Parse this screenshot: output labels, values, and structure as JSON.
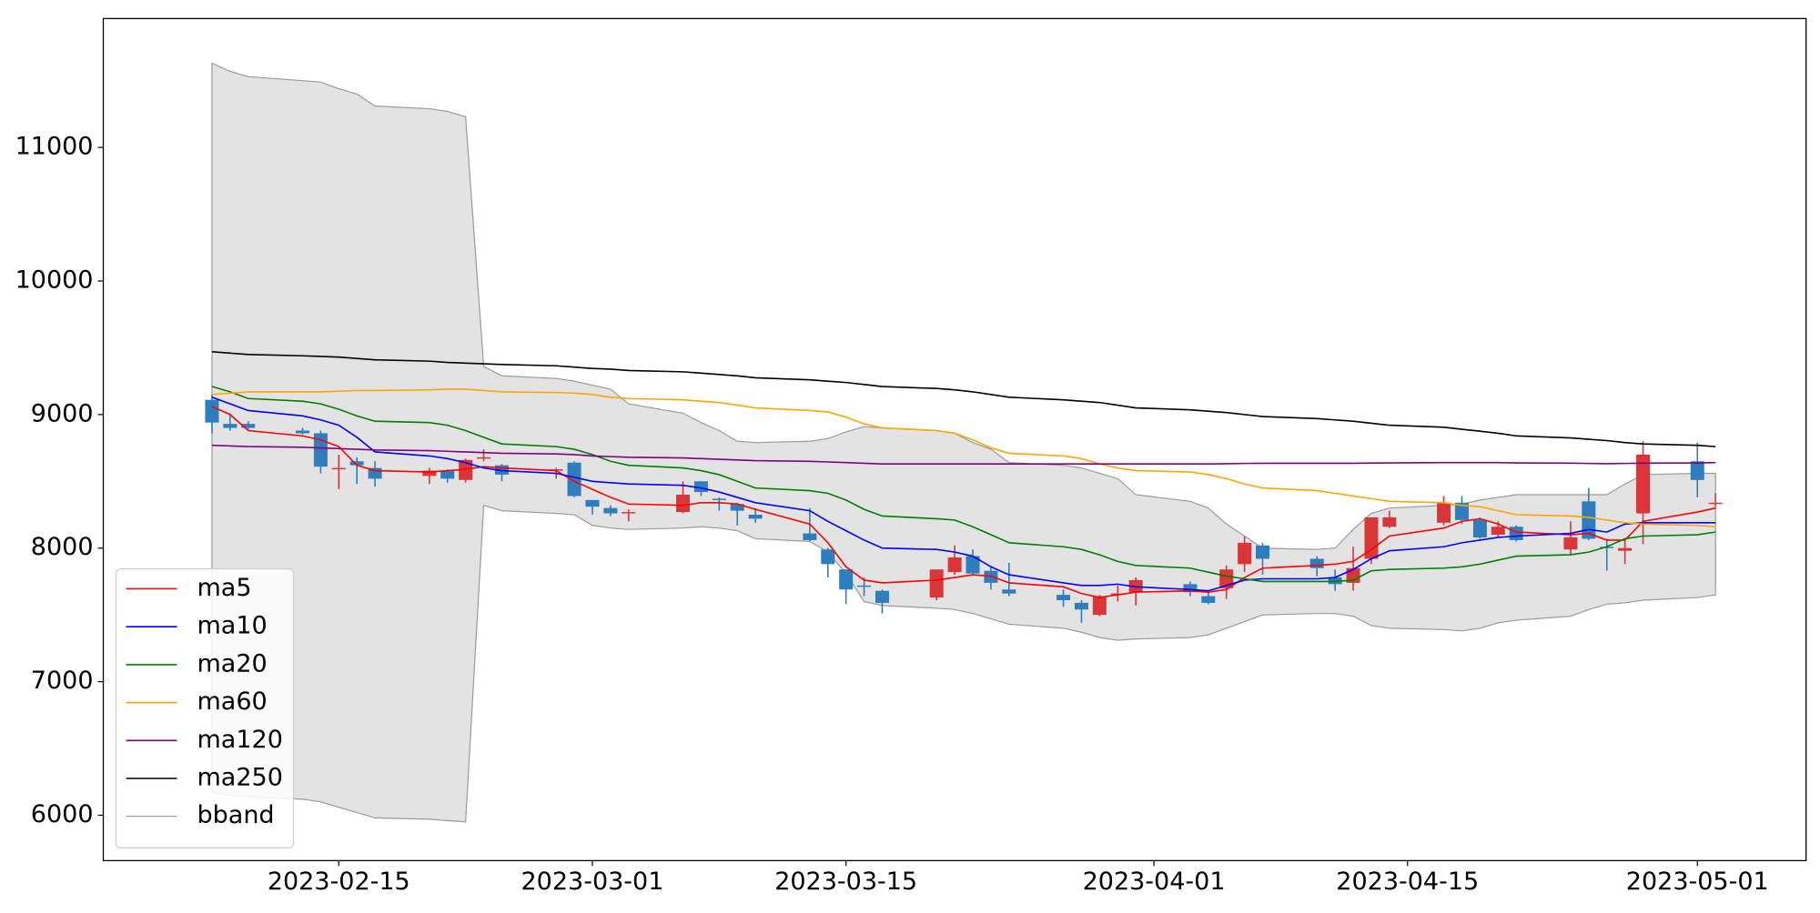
{
  "chart_data": {
    "type": "candlestick",
    "x": [
      "2023-02-08",
      "2023-02-09",
      "2023-02-10",
      "2023-02-13",
      "2023-02-14",
      "2023-02-15",
      "2023-02-16",
      "2023-02-17",
      "2023-02-20",
      "2023-02-21",
      "2023-02-22",
      "2023-02-23",
      "2023-02-24",
      "2023-02-27",
      "2023-02-28",
      "2023-03-01",
      "2023-03-02",
      "2023-03-03",
      "2023-03-06",
      "2023-03-07",
      "2023-03-08",
      "2023-03-09",
      "2023-03-10",
      "2023-03-13",
      "2023-03-14",
      "2023-03-15",
      "2023-03-16",
      "2023-03-17",
      "2023-03-20",
      "2023-03-21",
      "2023-03-22",
      "2023-03-23",
      "2023-03-24",
      "2023-03-27",
      "2023-03-28",
      "2023-03-29",
      "2023-03-30",
      "2023-03-31",
      "2023-04-03",
      "2023-04-04",
      "2023-04-05",
      "2023-04-06",
      "2023-04-07",
      "2023-04-10",
      "2023-04-11",
      "2023-04-12",
      "2023-04-13",
      "2023-04-14",
      "2023-04-17",
      "2023-04-18",
      "2023-04-19",
      "2023-04-20",
      "2023-04-21",
      "2023-04-24",
      "2023-04-25",
      "2023-04-26",
      "2023-04-27",
      "2023-04-28",
      "2023-05-01",
      "2023-05-02"
    ],
    "xlim": [
      "2023-02-02",
      "2023-05-07"
    ],
    "xticks": [
      "2023-02-15",
      "2023-03-01",
      "2023-03-15",
      "2023-04-01",
      "2023-04-15",
      "2023-05-01"
    ],
    "ylim": [
      5660,
      11965
    ],
    "yticks": [
      6000,
      7000,
      8000,
      9000,
      10000,
      11000
    ],
    "up_color": "#d9363a",
    "down_color": "#2f7dbd",
    "open": [
      9110,
      8930,
      8930,
      8880,
      8860,
      8590,
      8650,
      8600,
      8540,
      8580,
      8510,
      8670,
      8620,
      8580,
      8640,
      8360,
      8300,
      8260,
      8270,
      8500,
      8370,
      8330,
      8250,
      8110,
      7990,
      7840,
      7720,
      7680,
      7630,
      7820,
      7940,
      7830,
      7690,
      7650,
      7590,
      7500,
      7650,
      7670,
      7730,
      7640,
      7700,
      7880,
      8020,
      7920,
      7780,
      7740,
      7920,
      8160,
      8190,
      8340,
      8210,
      8100,
      8160,
      7990,
      8350,
      8010,
      7980,
      8260,
      8650,
      8330
    ],
    "high": [
      9150,
      9000,
      8950,
      8900,
      8880,
      8700,
      8680,
      8650,
      8600,
      8590,
      8670,
      8740,
      8630,
      8600,
      8650,
      8360,
      8320,
      8290,
      8500,
      8500,
      8380,
      8340,
      8300,
      8300,
      8000,
      7840,
      7780,
      7690,
      7840,
      8020,
      7990,
      7860,
      7890,
      7690,
      7610,
      7650,
      7720,
      7780,
      7750,
      7670,
      7870,
      8090,
      8040,
      7940,
      7840,
      8010,
      8230,
      8280,
      8390,
      8390,
      8230,
      8200,
      8170,
      8200,
      8450,
      8070,
      8060,
      8800,
      8790,
      8410
    ],
    "low": [
      8860,
      8880,
      8890,
      8850,
      8560,
      8440,
      8480,
      8460,
      8480,
      8490,
      8490,
      8650,
      8500,
      8520,
      8380,
      8250,
      8240,
      8200,
      8260,
      8390,
      8280,
      8170,
      8190,
      8050,
      7780,
      7580,
      7640,
      7510,
      7610,
      7800,
      7800,
      7690,
      7640,
      7560,
      7440,
      7490,
      7600,
      7570,
      7640,
      7580,
      7620,
      7820,
      7800,
      7790,
      7680,
      7680,
      7880,
      8150,
      8170,
      8180,
      8070,
      8080,
      8050,
      7950,
      8060,
      7830,
      7880,
      8030,
      8380,
      8310
    ],
    "close": [
      8940,
      8900,
      8900,
      8860,
      8610,
      8600,
      8620,
      8520,
      8580,
      8520,
      8660,
      8680,
      8550,
      8590,
      8390,
      8310,
      8260,
      8270,
      8400,
      8420,
      8360,
      8280,
      8220,
      8060,
      7880,
      7690,
      7710,
      7590,
      7840,
      7930,
      7810,
      7740,
      7660,
      7610,
      7540,
      7640,
      7660,
      7760,
      7670,
      7590,
      7840,
      8040,
      7920,
      7850,
      7730,
      7850,
      8230,
      8230,
      8340,
      8210,
      8080,
      8160,
      8060,
      8080,
      8070,
      8000,
      8000,
      8700,
      8510,
      8340
    ],
    "series": [
      {
        "name": "ma5",
        "color": "#ff0000",
        "values": [
          9060,
          9000,
          8880,
          8840,
          8810,
          8760,
          8620,
          8580,
          8570,
          8580,
          8590,
          8610,
          8600,
          8580,
          8500,
          8440,
          8380,
          8330,
          8320,
          8340,
          8340,
          8330,
          8290,
          8180,
          8040,
          7860,
          7760,
          7740,
          7760,
          7780,
          7800,
          7790,
          7740,
          7710,
          7660,
          7630,
          7650,
          7670,
          7680,
          7670,
          7690,
          7780,
          7850,
          7870,
          7880,
          7900,
          7990,
          8090,
          8150,
          8200,
          8220,
          8180,
          8120,
          8100,
          8110,
          8060,
          8060,
          8200,
          8270,
          8300
        ]
      },
      {
        "name": "ma10",
        "color": "#0000ff",
        "values": [
          9130,
          9080,
          9030,
          8990,
          8960,
          8920,
          8830,
          8720,
          8690,
          8670,
          8640,
          8600,
          8580,
          8560,
          8530,
          8500,
          8490,
          8480,
          8470,
          8450,
          8420,
          8380,
          8340,
          8280,
          8200,
          8130,
          8060,
          8000,
          7990,
          7970,
          7940,
          7860,
          7800,
          7740,
          7720,
          7720,
          7730,
          7710,
          7690,
          7680,
          7720,
          7760,
          7770,
          7770,
          7780,
          7840,
          7920,
          7980,
          8010,
          8040,
          8060,
          8080,
          8090,
          8110,
          8140,
          8120,
          8180,
          8190,
          8190,
          8190
        ]
      },
      {
        "name": "ma20",
        "color": "#008000",
        "values": [
          9210,
          9170,
          9120,
          9100,
          9080,
          9040,
          8990,
          8950,
          8940,
          8920,
          8880,
          8830,
          8780,
          8760,
          8740,
          8700,
          8650,
          8620,
          8600,
          8580,
          8550,
          8500,
          8450,
          8430,
          8410,
          8360,
          8290,
          8240,
          8220,
          8210,
          8160,
          8100,
          8040,
          8010,
          7990,
          7950,
          7900,
          7870,
          7850,
          7820,
          7790,
          7770,
          7750,
          7750,
          7750,
          7760,
          7830,
          7840,
          7850,
          7860,
          7880,
          7910,
          7940,
          7950,
          7970,
          8010,
          8070,
          8090,
          8100,
          8120
        ]
      },
      {
        "name": "ma60",
        "color": "#ffa500",
        "values": [
          9150,
          9160,
          9170,
          9170,
          9170,
          9175,
          9180,
          9180,
          9185,
          9190,
          9190,
          9180,
          9170,
          9165,
          9160,
          9150,
          9130,
          9120,
          9110,
          9100,
          9090,
          9070,
          9050,
          9030,
          9020,
          8980,
          8930,
          8900,
          8880,
          8860,
          8810,
          8750,
          8710,
          8690,
          8670,
          8630,
          8600,
          8580,
          8570,
          8550,
          8520,
          8480,
          8450,
          8430,
          8410,
          8390,
          8370,
          8350,
          8340,
          8320,
          8310,
          8280,
          8250,
          8240,
          8230,
          8210,
          8190,
          8180,
          8170,
          8160
        ]
      },
      {
        "name": "ma120",
        "color": "#800080",
        "values": [
          8770,
          8765,
          8760,
          8755,
          8750,
          8745,
          8740,
          8735,
          8730,
          8725,
          8720,
          8715,
          8710,
          8705,
          8700,
          8690,
          8685,
          8680,
          8675,
          8670,
          8665,
          8660,
          8655,
          8650,
          8645,
          8640,
          8635,
          8630,
          8630,
          8630,
          8630,
          8630,
          8630,
          8630,
          8630,
          8630,
          8630,
          8630,
          8630,
          8630,
          8632,
          8634,
          8635,
          8635,
          8635,
          8635,
          8637,
          8638,
          8640,
          8640,
          8640,
          8640,
          8638,
          8636,
          8634,
          8632,
          8634,
          8636,
          8638,
          8640
        ]
      },
      {
        "name": "ma250",
        "color": "#000000",
        "values": [
          9470,
          9460,
          9450,
          9440,
          9435,
          9430,
          9420,
          9410,
          9400,
          9390,
          9385,
          9380,
          9375,
          9365,
          9355,
          9345,
          9340,
          9330,
          9320,
          9310,
          9300,
          9290,
          9275,
          9260,
          9250,
          9240,
          9225,
          9210,
          9195,
          9185,
          9170,
          9150,
          9130,
          9110,
          9100,
          9090,
          9070,
          9050,
          9035,
          9025,
          9015,
          9000,
          8985,
          8970,
          8960,
          8950,
          8935,
          8920,
          8905,
          8890,
          8875,
          8860,
          8840,
          8825,
          8815,
          8805,
          8790,
          8780,
          8770,
          8760
        ]
      }
    ],
    "bband": {
      "name": "bband",
      "color": "#e3e3e3",
      "edge_color": "#9a9a9a",
      "upper": [
        11630,
        11570,
        11530,
        11500,
        11490,
        11440,
        11400,
        11310,
        11290,
        11270,
        11230,
        9360,
        9290,
        9270,
        9250,
        9220,
        9190,
        9080,
        9010,
        8940,
        8880,
        8800,
        8790,
        8800,
        8820,
        8870,
        8910,
        8900,
        8880,
        8860,
        8790,
        8740,
        8640,
        8620,
        8600,
        8560,
        8520,
        8400,
        8350,
        8300,
        8180,
        8090,
        8000,
        7990,
        8000,
        8140,
        8260,
        8300,
        8320,
        8330,
        8360,
        8380,
        8400,
        8400,
        8400,
        8400,
        8480,
        8550,
        8560,
        8560
      ],
      "lower": [
        6170,
        6150,
        6140,
        6120,
        6100,
        6060,
        6020,
        5980,
        5970,
        5960,
        5950,
        8320,
        8280,
        8260,
        8250,
        8170,
        8150,
        8140,
        8150,
        8160,
        8150,
        8130,
        8070,
        8050,
        7970,
        7810,
        7600,
        7570,
        7550,
        7540,
        7510,
        7470,
        7430,
        7400,
        7370,
        7330,
        7310,
        7320,
        7330,
        7350,
        7400,
        7450,
        7500,
        7510,
        7510,
        7490,
        7420,
        7400,
        7390,
        7380,
        7400,
        7440,
        7460,
        7490,
        7540,
        7580,
        7590,
        7610,
        7630,
        7650
      ]
    },
    "legend": "lower left"
  }
}
